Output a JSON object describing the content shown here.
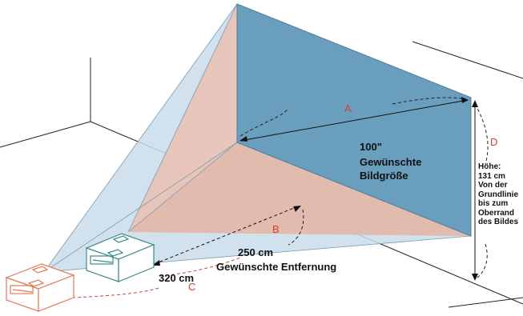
{
  "labels": {
    "a": "A",
    "b": "B",
    "c": "C",
    "d": "D",
    "image_size_value": "100\"",
    "image_size_line1": "Gewünschte",
    "image_size_line2": "Bildgröße",
    "height_lines": [
      "Höhe:",
      "131 cm",
      "Von der",
      "Grundlinie",
      "bis zum",
      "Oberrand",
      "des Bildes"
    ],
    "distance_near": "250 cm",
    "distance_caption": "Gewünschte Entfernung",
    "distance_far": "320 cm"
  },
  "colors": {
    "screen_fill": "#6a9ebd",
    "pink_beam": "#e8c2b6",
    "blue_beam": "#c9dcea",
    "projector_near_stroke": "#3a8a8a",
    "projector_far_stroke": "#e07858",
    "accent_red": "#c8443a"
  }
}
